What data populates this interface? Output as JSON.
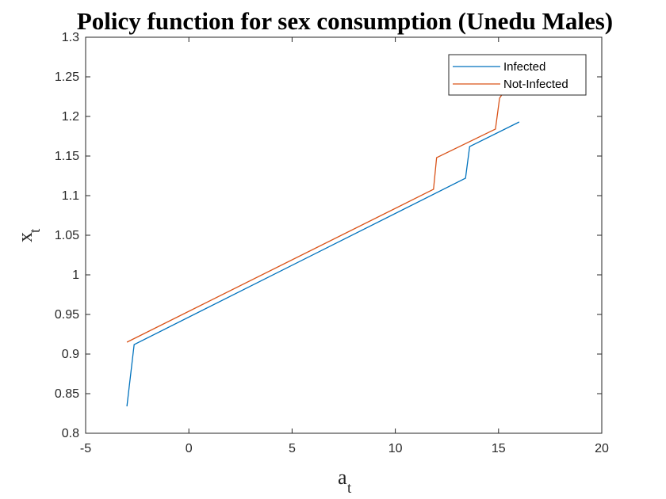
{
  "chart_data": {
    "type": "line",
    "title": "Policy function for sex consumption (Unedu Males)",
    "xlabel": {
      "base": "a",
      "subscript": "t"
    },
    "ylabel": {
      "base": "x",
      "subscript": "t"
    },
    "xlim": [
      -5,
      20
    ],
    "ylim": [
      0.8,
      1.3
    ],
    "xticks": [
      -5,
      0,
      5,
      10,
      15,
      20
    ],
    "yticks": [
      0.8,
      0.85,
      0.9,
      0.95,
      1,
      1.05,
      1.1,
      1.15,
      1.2,
      1.25,
      1.3
    ],
    "xtick_labels": [
      "-5",
      "0",
      "5",
      "10",
      "15",
      "20"
    ],
    "ytick_labels": [
      "0.8",
      "0.85",
      "0.9",
      "0.95",
      "1",
      "1.05",
      "1.1",
      "1.15",
      "1.2",
      "1.25",
      "1.3"
    ],
    "grid": false,
    "legend_position": "top-right",
    "series": [
      {
        "name": "Infected",
        "color": "#0072BD",
        "points": [
          [
            -3,
            0.834
          ],
          [
            -2.65,
            0.912
          ],
          [
            13.4,
            1.122
          ],
          [
            13.6,
            1.162
          ],
          [
            16,
            1.193
          ]
        ]
      },
      {
        "name": "Not-Infected",
        "color": "#D95319",
        "points": [
          [
            -3,
            0.915
          ],
          [
            11.85,
            1.108
          ],
          [
            12.0,
            1.148
          ],
          [
            14.85,
            1.184
          ],
          [
            15.05,
            1.223
          ],
          [
            15.2,
            1.229
          ]
        ]
      }
    ]
  }
}
